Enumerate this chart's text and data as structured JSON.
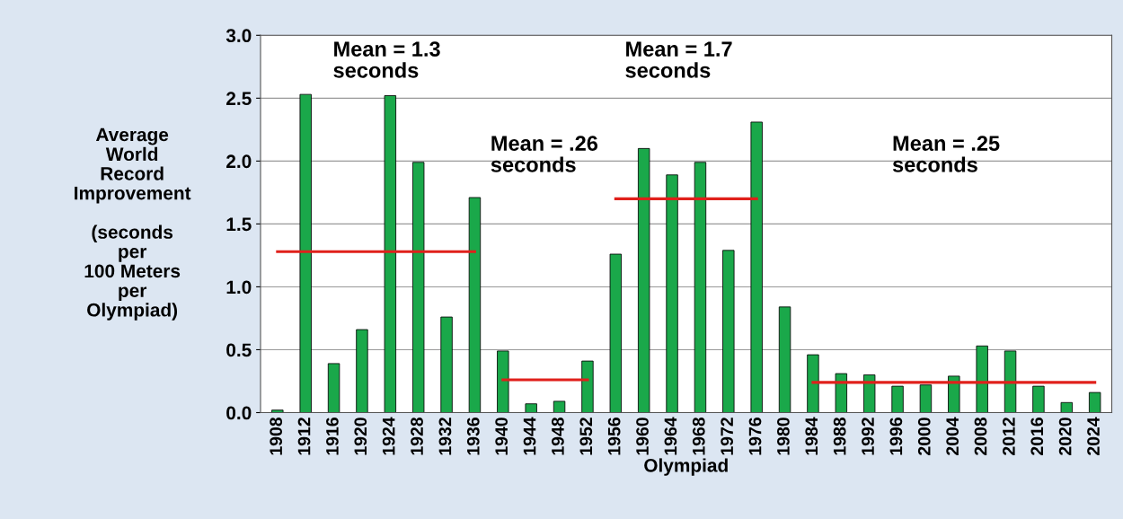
{
  "chart_data": {
    "type": "bar",
    "xlabel": "Olympiad",
    "ylabel": "Average\nWorld\nRecord\nImprovement\n\n(seconds\nper\n100 Meters\nper\nOlympiad)",
    "categories": [
      "1908",
      "1912",
      "1916",
      "1920",
      "1924",
      "1928",
      "1932",
      "1936",
      "1940",
      "1944",
      "1948",
      "1952",
      "1956",
      "1960",
      "1964",
      "1968",
      "1972",
      "1976",
      "1980",
      "1984",
      "1988",
      "1992",
      "1996",
      "2000",
      "2004",
      "2008",
      "2012",
      "2016",
      "2020",
      "2024"
    ],
    "series": [
      {
        "color": "#1aa84a",
        "values": [
          0.02,
          2.53,
          0.39,
          0.66,
          2.52,
          1.99,
          0.76,
          1.71,
          0.49,
          0.07,
          0.09,
          0.41,
          1.26,
          2.1,
          1.89,
          1.99,
          1.29,
          2.31,
          0.84,
          0.46,
          0.31,
          0.3,
          0.21,
          0.22,
          0.29,
          0.53,
          0.49,
          0.21,
          0.08,
          0.16
        ]
      },
      {
        "type": "line",
        "color": "#e0201b",
        "values": [
          1.28,
          1.28,
          1.28,
          1.28,
          1.28,
          1.28,
          1.28,
          1.28,
          null,
          null,
          null,
          null,
          null,
          null,
          null,
          null,
          null,
          null,
          null,
          null,
          null,
          null,
          null,
          null,
          null,
          null,
          null,
          null,
          null,
          null
        ]
      },
      {
        "type": "line",
        "color": "#e0201b",
        "values": [
          null,
          null,
          null,
          null,
          null,
          null,
          null,
          null,
          0.26,
          0.26,
          0.26,
          0.26,
          null,
          null,
          null,
          null,
          null,
          null,
          null,
          null,
          null,
          null,
          null,
          null,
          null,
          null,
          null,
          null,
          null,
          null
        ]
      },
      {
        "type": "line",
        "color": "#e0201b",
        "values": [
          null,
          null,
          null,
          null,
          null,
          null,
          null,
          null,
          null,
          null,
          null,
          null,
          1.7,
          1.7,
          1.7,
          1.7,
          1.7,
          1.7,
          null,
          null,
          null,
          null,
          null,
          null,
          null,
          null,
          null,
          null,
          null,
          null
        ]
      },
      {
        "type": "line",
        "color": "#e0201b",
        "values": [
          null,
          null,
          null,
          null,
          null,
          null,
          null,
          null,
          null,
          null,
          null,
          null,
          null,
          null,
          null,
          null,
          null,
          null,
          null,
          0.24,
          0.24,
          0.24,
          0.24,
          0.24,
          0.24,
          0.24,
          0.24,
          0.24,
          0.24,
          0.24
        ]
      }
    ],
    "annotations": [
      "Mean = 1.3\nseconds",
      "Mean = .26\nseconds",
      "Mean = 1.7\nseconds",
      "Mean = .25\nseconds"
    ],
    "ylim": [
      0,
      3.0
    ],
    "yticks": [
      {
        "value": 0,
        "label": "0.0"
      },
      {
        "value": 0.5,
        "label": "0.5"
      },
      {
        "value": 1.0,
        "label": "1.0"
      },
      {
        "value": 1.5,
        "label": "1.5"
      },
      {
        "value": 2.0,
        "label": "2.0"
      },
      {
        "value": 2.5,
        "label": "2.5"
      },
      {
        "value": 3.0,
        "label": "3.0"
      }
    ],
    "grid": "y",
    "marker": "none",
    "line_style": "solid"
  }
}
